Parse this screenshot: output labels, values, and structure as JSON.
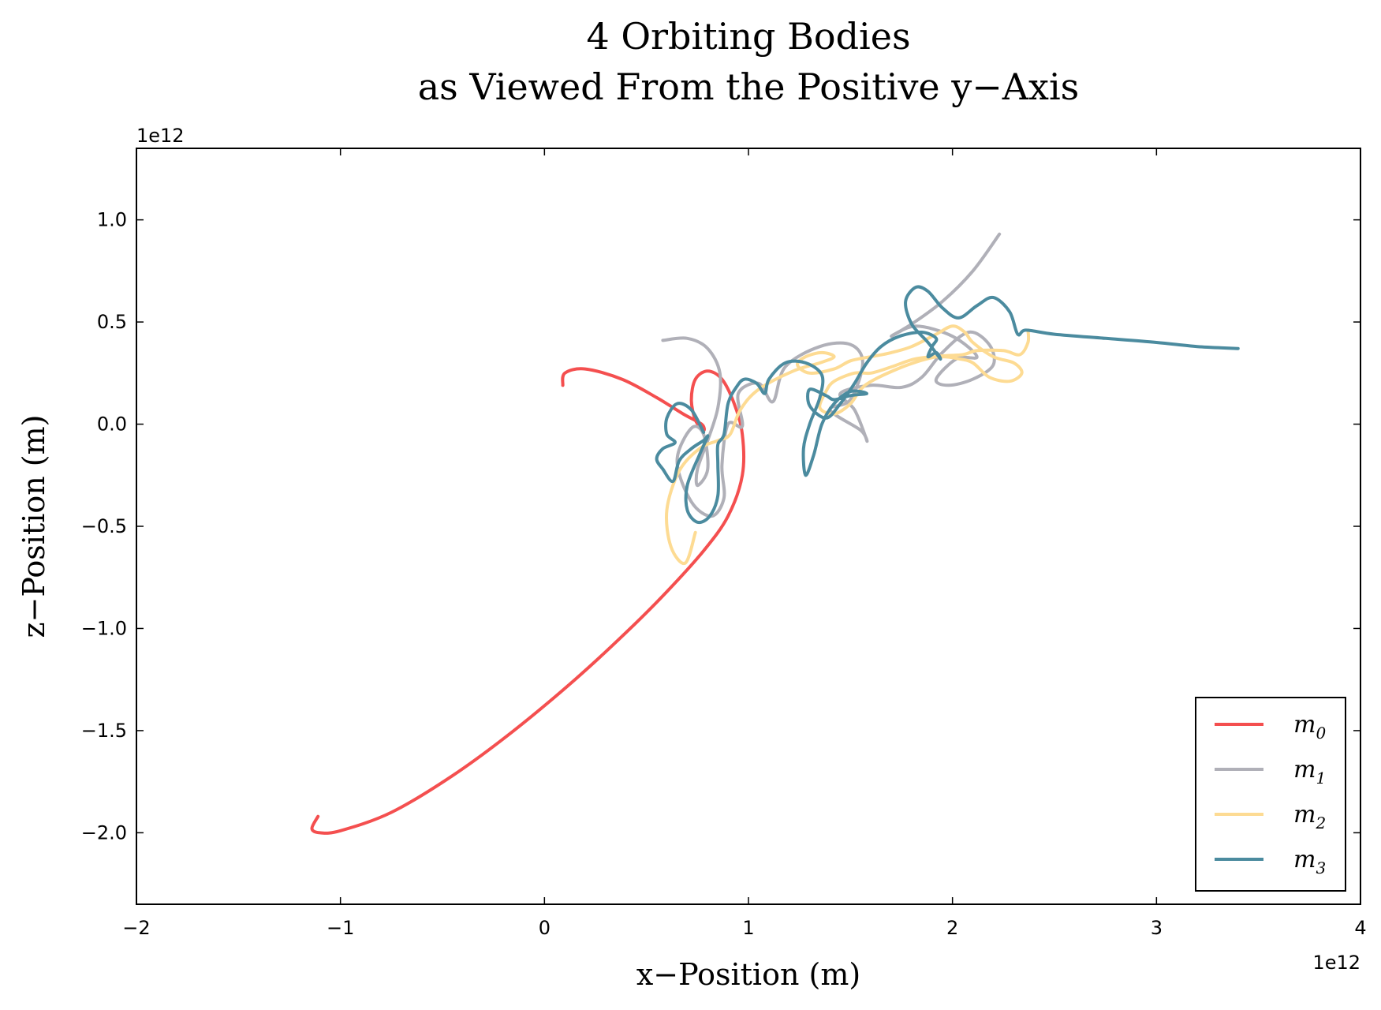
{
  "chart_data": {
    "type": "line",
    "title": [
      "4 Orbiting Bodies",
      "as Viewed From the Positive y−Axis"
    ],
    "xlabel": "x−Position (m)",
    "ylabel": "z−Position (m)",
    "x_offset_text": "1e12",
    "y_offset_text": "1e12",
    "xlim": [
      -2,
      4
    ],
    "ylim": [
      -2.35,
      1.35
    ],
    "xticks": [
      -2,
      -1,
      0,
      1,
      2,
      3,
      4
    ],
    "xtick_labels": [
      "−2",
      "−1",
      "0",
      "1",
      "2",
      "3",
      "4"
    ],
    "yticks": [
      -2.0,
      -1.5,
      -1.0,
      -0.5,
      0.0,
      0.5,
      1.0
    ],
    "ytick_labels": [
      "−2.0",
      "−1.5",
      "−1.0",
      "−0.5",
      "0.0",
      "0.5",
      "1.0"
    ],
    "grid": false,
    "legend_position": "bottom-right",
    "series": [
      {
        "name": "m0",
        "legend_base": "m",
        "legend_sub": "0",
        "color": "#f44f4f",
        "points": [
          [
            0.09,
            0.19
          ],
          [
            0.1,
            0.25
          ],
          [
            0.2,
            0.27
          ],
          [
            0.38,
            0.22
          ],
          [
            0.55,
            0.13
          ],
          [
            0.68,
            0.05
          ],
          [
            0.77,
            0.0
          ],
          [
            0.78,
            -0.03
          ],
          [
            0.74,
            0.02
          ],
          [
            0.72,
            0.12
          ],
          [
            0.74,
            0.22
          ],
          [
            0.8,
            0.26
          ],
          [
            0.87,
            0.22
          ],
          [
            0.93,
            0.1
          ],
          [
            0.97,
            -0.05
          ],
          [
            0.97,
            -0.25
          ],
          [
            0.9,
            -0.45
          ],
          [
            0.78,
            -0.62
          ],
          [
            0.6,
            -0.82
          ],
          [
            0.4,
            -1.02
          ],
          [
            0.15,
            -1.25
          ],
          [
            -0.15,
            -1.5
          ],
          [
            -0.45,
            -1.72
          ],
          [
            -0.75,
            -1.9
          ],
          [
            -1.0,
            -1.99
          ],
          [
            -1.1,
            -2.0
          ],
          [
            -1.14,
            -1.98
          ],
          [
            -1.11,
            -1.92
          ]
        ]
      },
      {
        "name": "m1",
        "legend_base": "m",
        "legend_sub": "1",
        "color": "#b0b0b8",
        "points": [
          [
            0.58,
            0.41
          ],
          [
            0.7,
            0.42
          ],
          [
            0.8,
            0.37
          ],
          [
            0.86,
            0.25
          ],
          [
            0.85,
            0.08
          ],
          [
            0.8,
            -0.08
          ],
          [
            0.75,
            -0.22
          ],
          [
            0.75,
            -0.3
          ],
          [
            0.8,
            -0.22
          ],
          [
            0.78,
            -0.05
          ],
          [
            0.72,
            -0.02
          ],
          [
            0.65,
            -0.18
          ],
          [
            0.72,
            -0.38
          ],
          [
            0.82,
            -0.45
          ],
          [
            0.88,
            -0.36
          ],
          [
            0.87,
            -0.2
          ],
          [
            0.9,
            0.0
          ],
          [
            0.97,
            -0.01
          ],
          [
            0.95,
            0.15
          ],
          [
            1.05,
            0.2
          ],
          [
            1.12,
            0.11
          ],
          [
            1.18,
            0.28
          ],
          [
            1.35,
            0.38
          ],
          [
            1.5,
            0.39
          ],
          [
            1.56,
            0.3
          ],
          [
            1.5,
            0.12
          ],
          [
            1.4,
            0.07
          ],
          [
            1.55,
            -0.03
          ],
          [
            1.58,
            -0.08
          ],
          [
            1.52,
            0.07
          ],
          [
            1.45,
            0.15
          ],
          [
            1.6,
            0.19
          ],
          [
            1.75,
            0.18
          ],
          [
            1.85,
            0.23
          ],
          [
            1.95,
            0.35
          ],
          [
            2.08,
            0.45
          ],
          [
            2.18,
            0.39
          ],
          [
            2.2,
            0.29
          ],
          [
            2.1,
            0.22
          ],
          [
            1.98,
            0.19
          ],
          [
            1.92,
            0.22
          ],
          [
            2.02,
            0.32
          ],
          [
            2.12,
            0.33
          ],
          [
            2.0,
            0.43
          ],
          [
            1.82,
            0.48
          ],
          [
            1.7,
            0.43
          ],
          [
            1.8,
            0.49
          ],
          [
            1.95,
            0.6
          ],
          [
            2.1,
            0.75
          ],
          [
            2.23,
            0.93
          ]
        ]
      },
      {
        "name": "m2",
        "legend_base": "m",
        "legend_sub": "2",
        "color": "#fddb93",
        "points": [
          [
            0.74,
            -0.53
          ],
          [
            0.69,
            -0.68
          ],
          [
            0.62,
            -0.6
          ],
          [
            0.6,
            -0.42
          ],
          [
            0.66,
            -0.23
          ],
          [
            0.76,
            -0.12
          ],
          [
            0.85,
            -0.08
          ],
          [
            0.91,
            -0.05
          ],
          [
            0.96,
            0.07
          ],
          [
            1.05,
            0.17
          ],
          [
            1.22,
            0.26
          ],
          [
            1.35,
            0.3
          ],
          [
            1.42,
            0.33
          ],
          [
            1.36,
            0.35
          ],
          [
            1.28,
            0.33
          ],
          [
            1.24,
            0.29
          ],
          [
            1.3,
            0.25
          ],
          [
            1.42,
            0.27
          ],
          [
            1.5,
            0.31
          ],
          [
            1.6,
            0.33
          ],
          [
            1.7,
            0.35
          ],
          [
            1.8,
            0.38
          ],
          [
            1.92,
            0.44
          ],
          [
            2.0,
            0.48
          ],
          [
            2.06,
            0.45
          ],
          [
            2.1,
            0.4
          ],
          [
            2.2,
            0.33
          ],
          [
            2.3,
            0.3
          ],
          [
            2.34,
            0.25
          ],
          [
            2.28,
            0.21
          ],
          [
            2.18,
            0.23
          ],
          [
            2.1,
            0.3
          ],
          [
            2.03,
            0.32
          ],
          [
            1.95,
            0.33
          ],
          [
            1.82,
            0.32
          ],
          [
            1.7,
            0.28
          ],
          [
            1.6,
            0.25
          ],
          [
            1.52,
            0.25
          ],
          [
            1.42,
            0.21
          ],
          [
            1.38,
            0.16
          ],
          [
            1.35,
            0.08
          ],
          [
            1.42,
            0.05
          ],
          [
            1.5,
            0.1
          ],
          [
            1.55,
            0.17
          ],
          [
            1.62,
            0.22
          ],
          [
            1.78,
            0.29
          ],
          [
            1.92,
            0.33
          ],
          [
            2.05,
            0.34
          ],
          [
            2.12,
            0.36
          ],
          [
            2.25,
            0.36
          ],
          [
            2.33,
            0.34
          ],
          [
            2.37,
            0.4
          ],
          [
            2.37,
            0.46
          ]
        ]
      },
      {
        "name": "m3",
        "legend_base": "m",
        "legend_sub": "3",
        "color": "#4b8b9f",
        "points": [
          [
            0.78,
            -0.04
          ],
          [
            0.72,
            0.07
          ],
          [
            0.65,
            0.1
          ],
          [
            0.6,
            0.03
          ],
          [
            0.6,
            -0.05
          ],
          [
            0.64,
            -0.09
          ],
          [
            0.58,
            -0.12
          ],
          [
            0.55,
            -0.17
          ],
          [
            0.58,
            -0.22
          ],
          [
            0.63,
            -0.28
          ],
          [
            0.66,
            -0.18
          ],
          [
            0.72,
            -0.12
          ],
          [
            0.78,
            -0.08
          ],
          [
            0.8,
            -0.06
          ],
          [
            0.76,
            -0.15
          ],
          [
            0.7,
            -0.3
          ],
          [
            0.7,
            -0.42
          ],
          [
            0.75,
            -0.48
          ],
          [
            0.81,
            -0.45
          ],
          [
            0.85,
            -0.35
          ],
          [
            0.85,
            -0.2
          ],
          [
            0.85,
            -0.1
          ],
          [
            0.88,
            -0.05
          ],
          [
            0.9,
            0.1
          ],
          [
            0.94,
            0.18
          ],
          [
            0.98,
            0.22
          ],
          [
            1.04,
            0.2
          ],
          [
            1.08,
            0.15
          ],
          [
            1.1,
            0.22
          ],
          [
            1.18,
            0.3
          ],
          [
            1.28,
            0.3
          ],
          [
            1.36,
            0.24
          ],
          [
            1.35,
            0.13
          ],
          [
            1.3,
            0.0
          ],
          [
            1.27,
            -0.12
          ],
          [
            1.28,
            -0.25
          ],
          [
            1.32,
            -0.15
          ],
          [
            1.36,
            0.0
          ],
          [
            1.42,
            0.1
          ],
          [
            1.5,
            0.16
          ],
          [
            1.58,
            0.15
          ],
          [
            1.5,
            0.14
          ],
          [
            1.42,
            0.12
          ],
          [
            1.38,
            0.14
          ],
          [
            1.3,
            0.17
          ],
          [
            1.3,
            0.09
          ],
          [
            1.38,
            0.03
          ],
          [
            1.45,
            0.1
          ],
          [
            1.52,
            0.2
          ],
          [
            1.58,
            0.3
          ],
          [
            1.65,
            0.38
          ],
          [
            1.74,
            0.43
          ],
          [
            1.85,
            0.45
          ],
          [
            1.92,
            0.42
          ],
          [
            1.9,
            0.38
          ],
          [
            1.88,
            0.33
          ],
          [
            1.92,
            0.35
          ],
          [
            1.94,
            0.32
          ],
          [
            1.88,
            0.4
          ],
          [
            1.8,
            0.49
          ],
          [
            1.77,
            0.6
          ],
          [
            1.82,
            0.67
          ],
          [
            1.88,
            0.65
          ],
          [
            1.95,
            0.57
          ],
          [
            2.03,
            0.52
          ],
          [
            2.12,
            0.58
          ],
          [
            2.2,
            0.62
          ],
          [
            2.28,
            0.55
          ],
          [
            2.32,
            0.44
          ],
          [
            2.36,
            0.46
          ],
          [
            2.5,
            0.44
          ],
          [
            2.75,
            0.42
          ],
          [
            3.0,
            0.4
          ],
          [
            3.2,
            0.38
          ],
          [
            3.4,
            0.37
          ]
        ]
      }
    ]
  }
}
